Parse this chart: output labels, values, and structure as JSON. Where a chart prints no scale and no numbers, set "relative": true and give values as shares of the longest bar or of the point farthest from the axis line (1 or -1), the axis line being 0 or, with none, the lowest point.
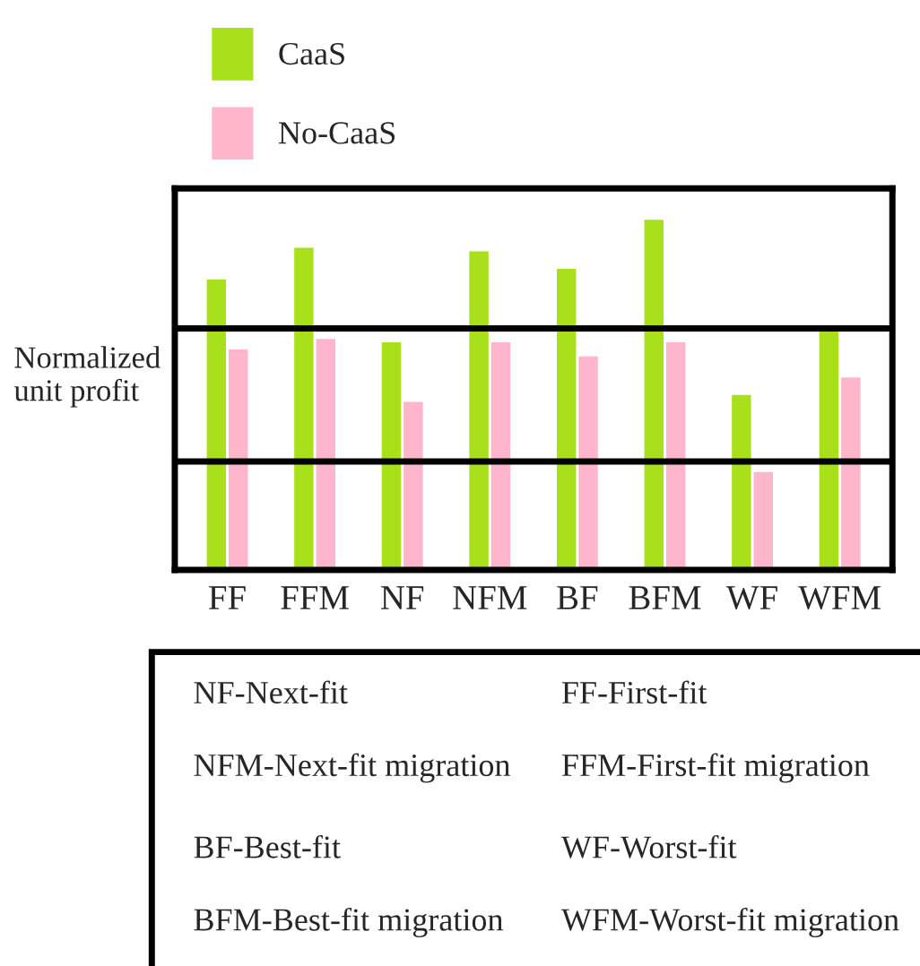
{
  "chart_data": {
    "type": "bar",
    "relative": true,
    "ylabel": "Normalized\nunit profit",
    "categories": [
      "FF",
      "FFM",
      "NF",
      "NFM",
      "BF",
      "BFM",
      "WF",
      "WFM"
    ],
    "series": [
      {
        "name": "CaaS",
        "color": "#a8e01c",
        "values": [
          0.83,
          0.92,
          0.65,
          0.91,
          0.86,
          1,
          0.5,
          0.69
        ]
      },
      {
        "name": "No-CaaS",
        "color": "#ffb6cc",
        "values": [
          0.63,
          0.66,
          0.48,
          0.65,
          0.61,
          0.65,
          0.28,
          0.55
        ]
      }
    ],
    "ref_lines": [
      {
        "axis": "y",
        "value": 0.69,
        "label": null
      },
      {
        "axis": "y",
        "value": 0.31,
        "label": null
      }
    ],
    "legend": "top",
    "grid": false,
    "annotations": [
      "NF-Next-fit",
      "NFM-Next-fit migration",
      "BF-Best-fit",
      "BFM-Best-fit migration",
      "FF-First-fit",
      "FFM-First-fit migration",
      "WF-Worst-fit",
      "WFM-Worst-fit migration"
    ]
  }
}
